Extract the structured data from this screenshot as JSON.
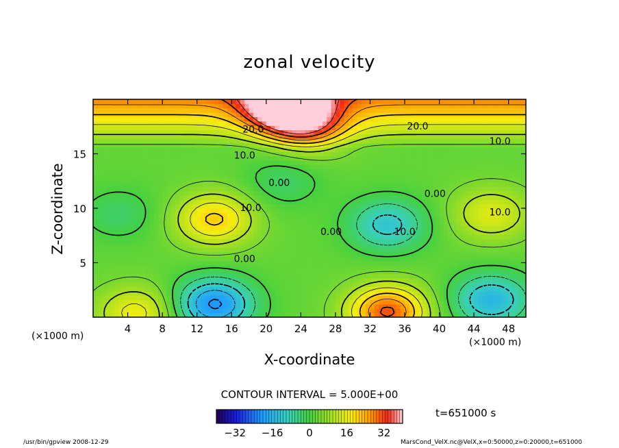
{
  "chart_data": {
    "type": "heatmap",
    "title": "zonal velocity",
    "xlabel": "X-coordinate",
    "ylabel": "Z-coordinate",
    "x_unit_label": "(×1000 m)",
    "x_ticks": [
      4,
      8,
      12,
      16,
      20,
      24,
      28,
      32,
      36,
      40,
      44,
      48
    ],
    "y_ticks": [
      5,
      10,
      15
    ],
    "xlim": [
      0,
      50
    ],
    "ylim": [
      0,
      20
    ],
    "contour_interval_label": "CONTOUR INTERVAL = 5.000E+00",
    "contour_labels": [
      {
        "text": "20.0",
        "x": 18.5,
        "y": 17.2
      },
      {
        "text": "20.0",
        "x": 37.5,
        "y": 17.5
      },
      {
        "text": "10.0",
        "x": 47,
        "y": 16.1
      },
      {
        "text": "10.0",
        "x": 17.5,
        "y": 14.8
      },
      {
        "text": "0.00",
        "x": 21.5,
        "y": 12.3
      },
      {
        "text": "10.0",
        "x": 18.2,
        "y": 10.0
      },
      {
        "text": "0.00",
        "x": 27.5,
        "y": 7.8
      },
      {
        "text": "10.0",
        "x": 36,
        "y": 7.8
      },
      {
        "text": "0.00",
        "x": 39.5,
        "y": 11.3
      },
      {
        "text": "10.0",
        "x": 47,
        "y": 9.6
      },
      {
        "text": "0.00",
        "x": 17.5,
        "y": 5.3
      }
    ],
    "field_features": [
      {
        "x": 14,
        "y": 9,
        "value": 18
      },
      {
        "x": 34,
        "y": 8.5,
        "value": -15
      },
      {
        "x": 14,
        "y": 1.2,
        "value": -24
      },
      {
        "x": 34,
        "y": 0.5,
        "value": 28
      },
      {
        "x": 46,
        "y": 1.6,
        "value": -18
      },
      {
        "x": 46,
        "y": 9.5,
        "value": 12
      },
      {
        "x": 5,
        "y": 0.4,
        "value": 14
      },
      {
        "x": 22,
        "y": 12.5,
        "value": -6
      },
      {
        "x": 22,
        "y": 19.3,
        "value": 32
      },
      {
        "x": 25,
        "y": 17.5,
        "value": 18
      },
      {
        "x": 3,
        "y": 9.5,
        "value": -6
      }
    ],
    "colorbar": {
      "range": [
        -40,
        40
      ],
      "tick_values": [
        -32,
        -16,
        0,
        16,
        32
      ],
      "tick_labels": [
        "−32",
        "−16",
        "0",
        "16",
        "32"
      ]
    }
  },
  "annotations": {
    "time": "t=651000 s",
    "footer_left": "/usr/bin/gpview   2008-12-29",
    "footer_right": "MarsCond_VelX.nc@VelX,x=0:50000,z=0:20000,t=651000"
  }
}
